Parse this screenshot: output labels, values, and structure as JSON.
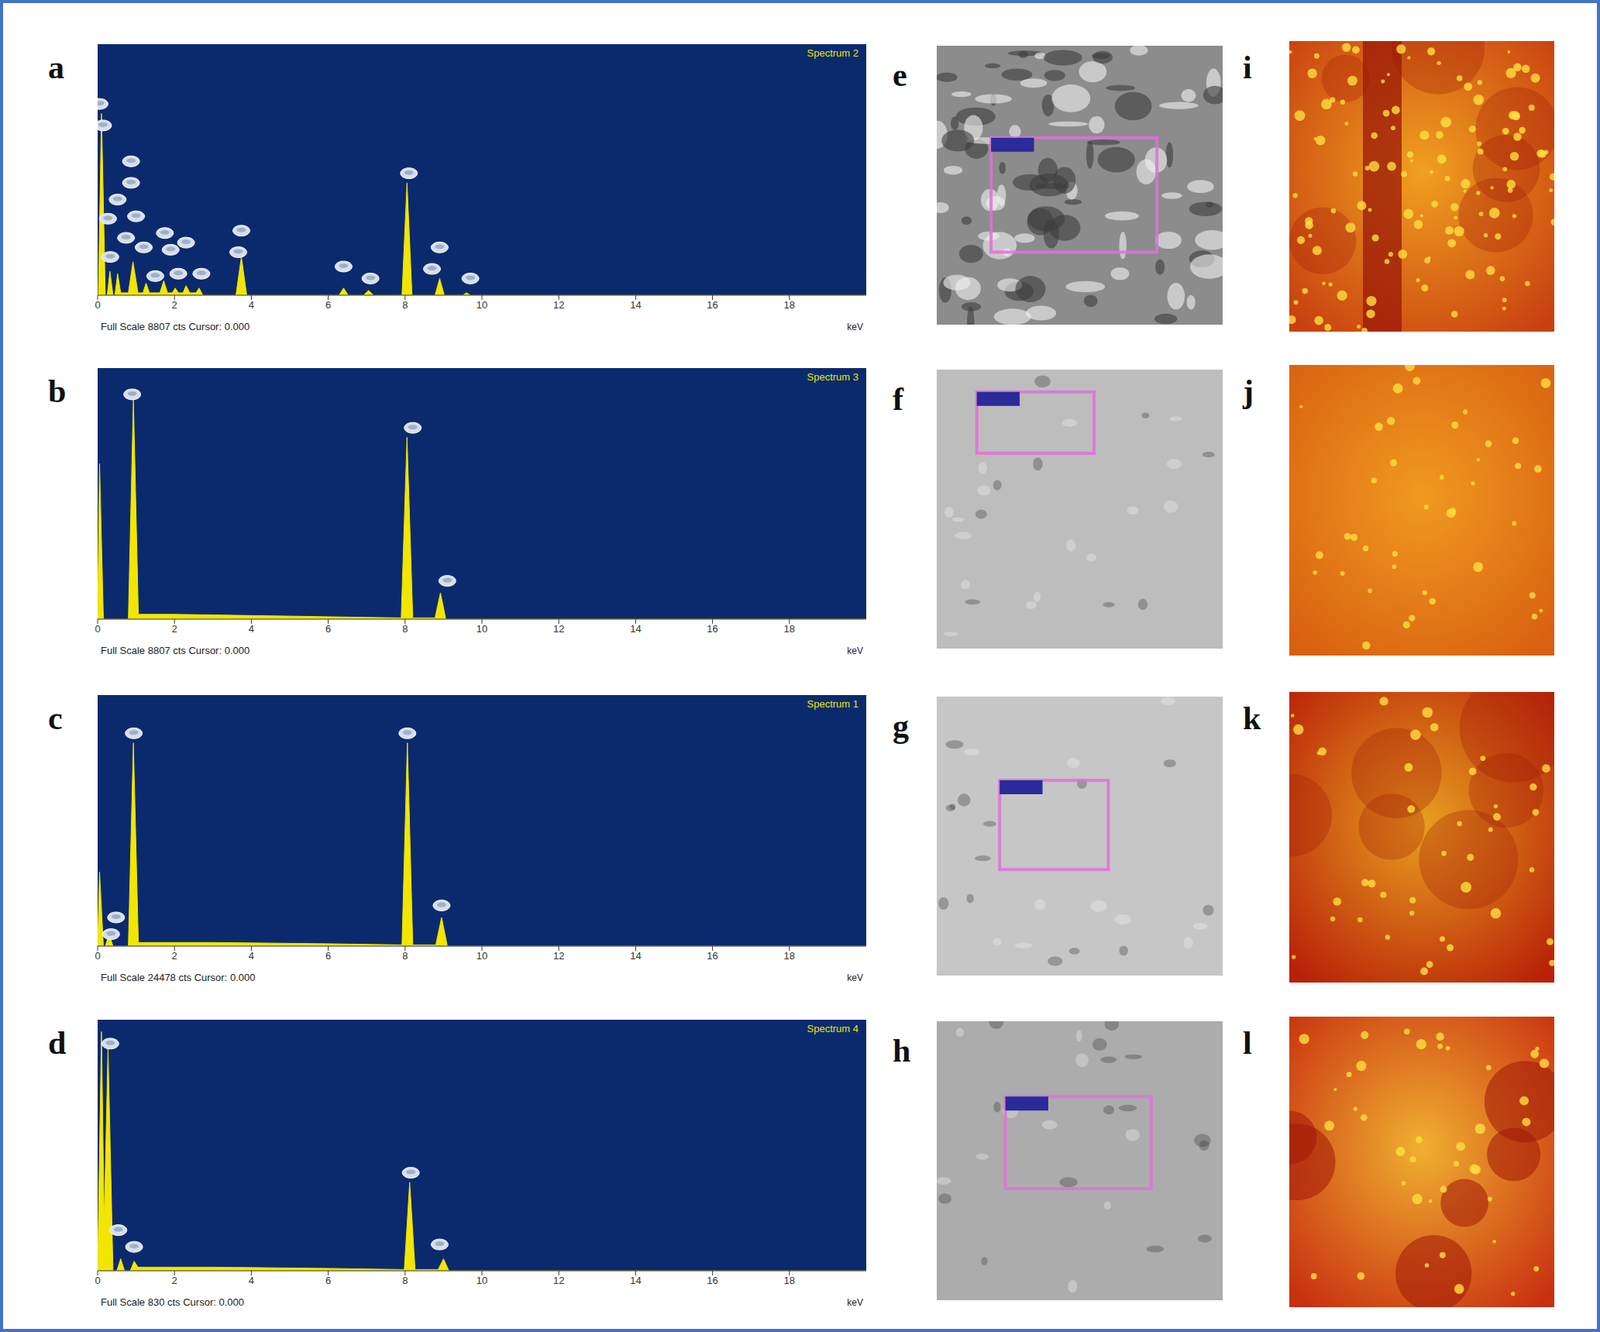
{
  "chart_data": [
    {
      "type": "area",
      "panel": "a",
      "title": "Spectrum 2",
      "subtitle": "Full Scale 8807 cts Cursor: 0.000",
      "x_label": "keV",
      "color": "#f2e600",
      "xlim": [
        0,
        20
      ],
      "xticks": [
        0,
        2,
        4,
        6,
        8,
        10,
        12,
        14,
        16,
        18
      ],
      "ylim": [
        0,
        105
      ],
      "tick_labels": "x",
      "x": [
        0,
        0.02,
        0.1,
        0.2,
        0.25,
        0.32,
        0.4,
        0.45,
        0.52,
        0.6,
        0.8,
        0.92,
        1.05,
        1.18,
        1.26,
        1.35,
        1.62,
        1.72,
        1.82,
        1.94,
        2.02,
        2.1,
        2.22,
        2.3,
        2.4,
        2.56,
        2.64,
        2.74,
        3.6,
        3.74,
        3.88,
        6.28,
        6.4,
        6.52,
        6.92,
        7.05,
        7.18,
        7.92,
        8.05,
        8.18,
        8.78,
        8.9,
        9.02,
        9.5,
        9.6,
        9.7,
        20
      ],
      "values": [
        0,
        0,
        76,
        0,
        0,
        10,
        0,
        0,
        9,
        1,
        1,
        14,
        1,
        1,
        5,
        1,
        1,
        6,
        1,
        1,
        3,
        1,
        1,
        4,
        1,
        1,
        3,
        0,
        0,
        16,
        0,
        0,
        3,
        0,
        0,
        2,
        0,
        0,
        47,
        0,
        0,
        7,
        0,
        0,
        1,
        0,
        0
      ],
      "peak_marks": {
        "x": [
          0.05,
          0.14,
          0.87,
          0.87,
          0.52,
          0.27,
          1.0,
          0.74,
          1.75,
          1.2,
          2.3,
          1.9,
          0.33,
          1.5,
          2.1,
          2.7,
          3.74,
          3.66,
          6.4,
          7.1,
          8.1,
          8.9,
          8.7,
          9.7
        ],
        "values": [
          80,
          71,
          56,
          47,
          40,
          32,
          33,
          24,
          26,
          20,
          22,
          19,
          16,
          8,
          9,
          9,
          27,
          18,
          12,
          7,
          51,
          20,
          11,
          7
        ]
      }
    },
    {
      "type": "area",
      "panel": "b",
      "title": "Spectrum 3",
      "subtitle": "Full Scale 8807 cts Cursor: 0.000",
      "x_label": "keV",
      "color": "#f2e600",
      "xlim": [
        0,
        20
      ],
      "xticks": [
        0,
        2,
        4,
        6,
        8,
        10,
        12,
        14,
        16,
        18
      ],
      "ylim": [
        0,
        105
      ],
      "tick_labels": "x",
      "x": [
        0,
        0.05,
        0.15,
        0.8,
        0.93,
        1.06,
        2,
        4,
        6,
        7.9,
        8.05,
        8.2,
        8.78,
        8.92,
        9.06,
        20
      ],
      "values": [
        0,
        65,
        0,
        0,
        92,
        2,
        2,
        1.5,
        1,
        0.5,
        76,
        0.5,
        0.5,
        11,
        0,
        0
      ],
      "peak_marks": {
        "x": [
          0.9,
          8.2,
          9.1
        ],
        "values": [
          94,
          80,
          16
        ]
      }
    },
    {
      "type": "area",
      "panel": "c",
      "title": "Spectrum 1",
      "subtitle": "Full Scale 24478 cts Cursor: 0.000",
      "x_label": "keV",
      "color": "#f2e600",
      "xlim": [
        0,
        20
      ],
      "xticks": [
        0,
        2,
        4,
        6,
        8,
        10,
        12,
        14,
        16,
        18
      ],
      "ylim": [
        0,
        105
      ],
      "tick_labels": "x",
      "x": [
        0,
        0.05,
        0.15,
        0.2,
        0.3,
        0.4,
        0.8,
        0.93,
        1.06,
        3,
        6,
        7.92,
        8.06,
        8.2,
        8.8,
        8.95,
        9.1,
        20
      ],
      "values": [
        0,
        31,
        0,
        0,
        5,
        0,
        0,
        85,
        1.5,
        1.5,
        1,
        0.5,
        85,
        0.5,
        0.5,
        12,
        0,
        0
      ],
      "peak_marks": {
        "x": [
          0.94,
          8.06,
          8.95,
          0.48,
          0.35
        ],
        "values": [
          89,
          89,
          17,
          12,
          5
        ]
      }
    },
    {
      "type": "area",
      "panel": "d",
      "title": "Spectrum 4",
      "subtitle": "Full Scale 830 cts Cursor: 0.000",
      "x_label": "keV",
      "color": "#f2e600",
      "xlim": [
        0,
        20
      ],
      "xticks": [
        0,
        2,
        4,
        6,
        8,
        10,
        12,
        14,
        16,
        18
      ],
      "ylim": [
        0,
        105
      ],
      "tick_labels": "x",
      "x": [
        0,
        0.1,
        0.17,
        0.27,
        0.4,
        0.5,
        0.6,
        0.7,
        0.85,
        0.95,
        1.05,
        3,
        6,
        7.98,
        8.12,
        8.26,
        8.86,
        9.0,
        9.14,
        20
      ],
      "values": [
        0,
        100,
        20,
        93,
        0,
        0,
        5,
        0,
        0,
        4,
        1.5,
        1.5,
        1,
        0.5,
        37,
        0.5,
        0.5,
        5,
        0,
        0
      ],
      "peak_marks": {
        "x": [
          0.33,
          0.54,
          0.95,
          8.15,
          8.9
        ],
        "values": [
          95,
          17,
          10,
          41,
          11
        ]
      }
    }
  ],
  "image_panels": {
    "sem": [
      "e",
      "f",
      "g",
      "h"
    ],
    "fluorescence": [
      "i",
      "j",
      "k",
      "l"
    ]
  }
}
